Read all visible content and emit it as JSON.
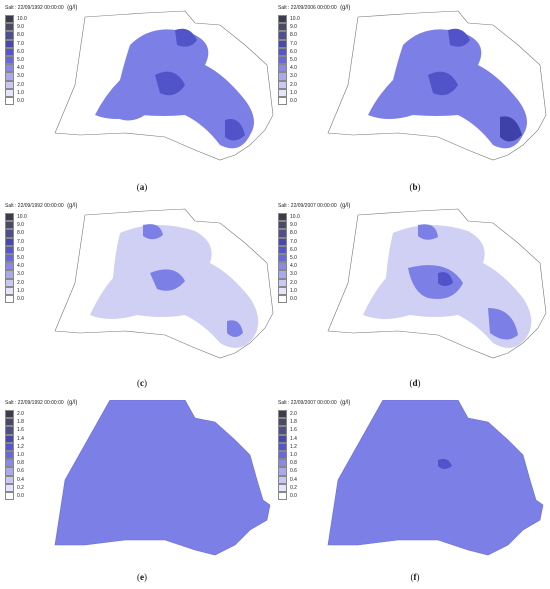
{
  "panels": [
    {
      "id": "a",
      "title": "Salt : 22/09/1992 00:00:00",
      "unit": "(g/l)",
      "caption_letter": "a",
      "legend": [
        "10.0",
        "9.0",
        "8.0",
        "7.0",
        "6.0",
        "5.0",
        "4.0",
        "3.0",
        "2.0",
        "1.0",
        "0.0"
      ]
    },
    {
      "id": "b",
      "title": "Salt : 22/09/2006 00:00:00",
      "unit": "(g/l)",
      "caption_letter": "b",
      "legend": [
        "10.0",
        "9.0",
        "8.0",
        "7.0",
        "6.0",
        "5.0",
        "4.0",
        "3.0",
        "2.0",
        "1.0",
        "0.0"
      ]
    },
    {
      "id": "c",
      "title": "Salt : 22/09/1992 00:00:00",
      "unit": "(g/l)",
      "caption_letter": "c",
      "legend": [
        "10.0",
        "9.0",
        "8.0",
        "7.0",
        "6.0",
        "5.0",
        "4.0",
        "3.0",
        "2.0",
        "1.0",
        "0.0"
      ]
    },
    {
      "id": "d",
      "title": "Salt : 22/09/2007 00:00:00",
      "unit": "(g/l)",
      "caption_letter": "d",
      "legend": [
        "10.0",
        "9.0",
        "8.0",
        "7.0",
        "6.0",
        "5.0",
        "4.0",
        "3.0",
        "2.0",
        "1.0",
        "0.0"
      ]
    },
    {
      "id": "e",
      "title": "Salt : 22/09/1992 00:00:00",
      "unit": "(g/l)",
      "caption_letter": "e",
      "legend": [
        "2.0",
        "1.8",
        "1.6",
        "1.4",
        "1.2",
        "1.0",
        "0.8",
        "0.6",
        "0.4",
        "0.2",
        "0.0"
      ]
    },
    {
      "id": "f",
      "title": "Salt : 22/09/2007 00:00:00",
      "unit": "(g/l)",
      "caption_letter": "f",
      "legend": [
        "2.0",
        "1.8",
        "1.6",
        "1.4",
        "1.2",
        "1.0",
        "0.8",
        "0.6",
        "0.4",
        "0.2",
        "0.0"
      ]
    }
  ],
  "legend_colors": [
    "#3c3c4c",
    "#4a4a68",
    "#4f4f8c",
    "#4848b0",
    "#5656cc",
    "#6868dc",
    "#8a8ae6",
    "#a9a9ee",
    "#c8c8f4",
    "#e4e4fa",
    "#ffffff"
  ],
  "colors": {
    "fill_light": "#cfd0f3",
    "fill_mid": "#7b7fe6",
    "fill_dark": "#5054c8",
    "fill_darkest": "#3e42a8",
    "outline": "#777777"
  }
}
